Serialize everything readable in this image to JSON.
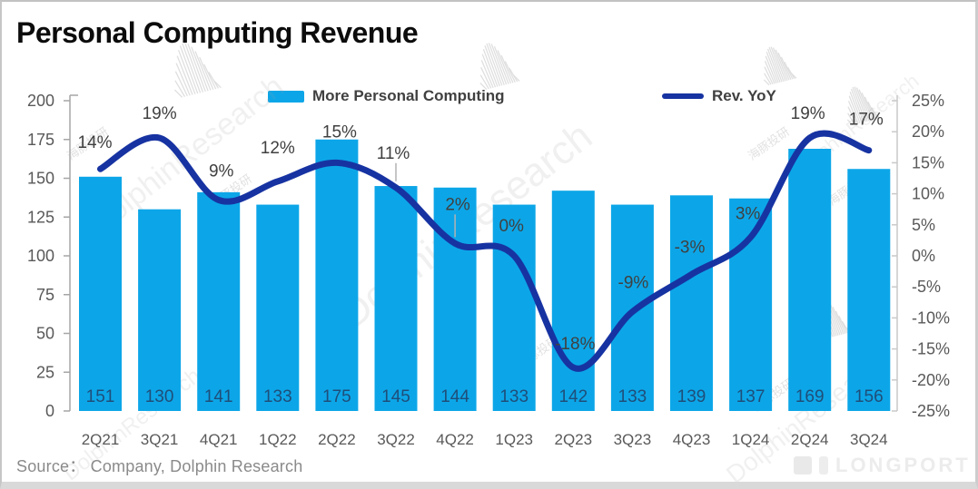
{
  "title": "Personal Computing Revenue",
  "legend": {
    "bar_label": "More Personal Computing",
    "line_label": "Rev. YoY"
  },
  "source_text": "Source：  Company, Dolphin Research",
  "watermark": {
    "brand_text": "DolphinResearch",
    "brand_cn": "海豚投研",
    "footer_logo_text": "LONGPORT"
  },
  "colors": {
    "bar": "#0ca6e8",
    "line": "#1733a2",
    "bar_value_label": "#1f4e79",
    "line_value_label": "#404040",
    "axis_label": "#595959",
    "axis_line": "#a6a6a6",
    "title": "#0c0c0c",
    "source": "#8a8a8a"
  },
  "chart_data": {
    "type": "bar+line combo",
    "title": "Personal Computing Revenue",
    "categories": [
      "2Q21",
      "3Q21",
      "4Q21",
      "1Q22",
      "2Q22",
      "3Q22",
      "4Q22",
      "1Q23",
      "2Q23",
      "3Q23",
      "4Q23",
      "1Q24",
      "2Q24",
      "3Q24"
    ],
    "series": [
      {
        "name": "More Personal Computing",
        "type": "bar",
        "axis": "left",
        "values": [
          151,
          130,
          141,
          133,
          175,
          145,
          144,
          133,
          142,
          133,
          139,
          137,
          169,
          156
        ]
      },
      {
        "name": "Rev. YoY",
        "type": "line",
        "axis": "right",
        "unit": "%",
        "values": [
          14,
          19,
          9,
          12,
          15,
          11,
          2,
          0,
          -18,
          -9,
          -3,
          3,
          19,
          17
        ]
      }
    ],
    "left_axis": {
      "min": 0,
      "max": 200,
      "step": 25,
      "tick_labels_top_to_bottom": [
        "200",
        "175",
        "150",
        "125",
        "100",
        "75",
        "50",
        "25",
        "0"
      ]
    },
    "right_axis": {
      "min": -25,
      "max": 25,
      "step": 5,
      "tick_labels_top_to_bottom": [
        "25%",
        "20%",
        "15%",
        "10%",
        "5%",
        "0%",
        "-5%",
        "-10%",
        "-15%",
        "-20%",
        "-25%"
      ]
    },
    "grid": "off",
    "legend_position": "top"
  }
}
